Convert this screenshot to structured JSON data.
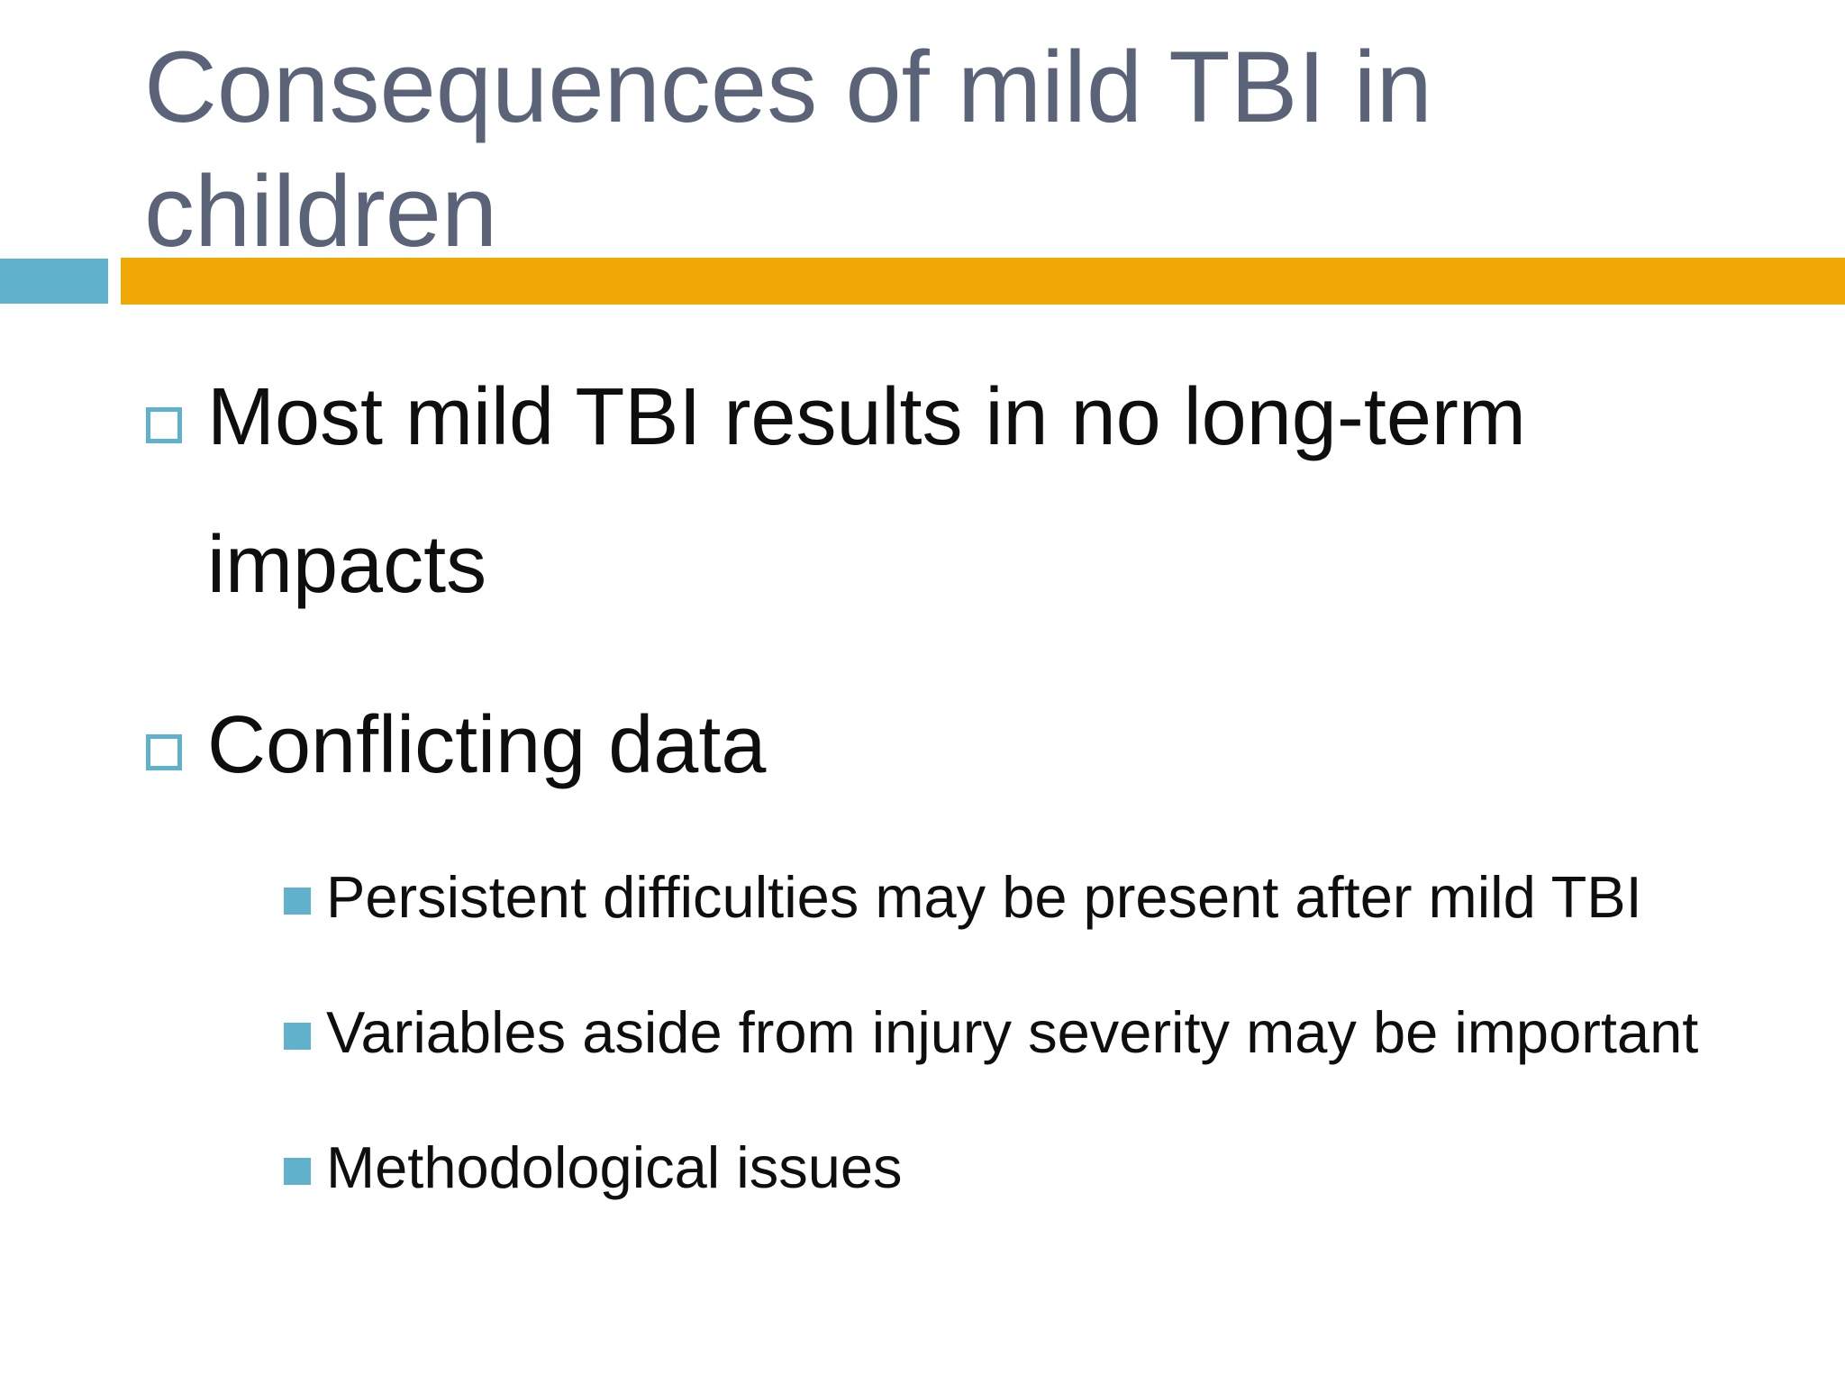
{
  "colors": {
    "teal": "#5FB1CC",
    "orange": "#F0A806",
    "titleText": "#5A6378",
    "bodyText": "#0E0E0E",
    "background": "#FFFFFF"
  },
  "slide": {
    "title": "Consequences of mild TBI in children",
    "bullets": [
      {
        "level": 1,
        "text": "Most mild TBI results in no long-term impacts"
      },
      {
        "level": 1,
        "text": "Conflicting data"
      },
      {
        "level": 2,
        "text": "Persistent difficulties may be present after mild TBI"
      },
      {
        "level": 2,
        "text": "Variables aside from injury severity may be important"
      },
      {
        "level": 2,
        "text": "Methodological issues"
      }
    ]
  }
}
